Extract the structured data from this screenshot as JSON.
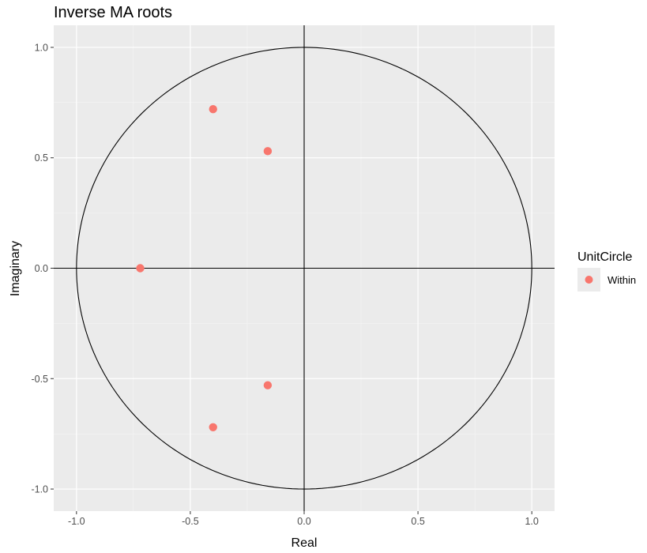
{
  "chart_data": {
    "type": "scatter",
    "title": "Inverse MA roots",
    "xlabel": "Real",
    "ylabel": "Imaginary",
    "xlim": [
      -1.1,
      1.1
    ],
    "ylim": [
      -1.1,
      1.1
    ],
    "x_ticks": [
      -1.0,
      -0.5,
      0.0,
      0.5,
      1.0
    ],
    "y_ticks": [
      -1.0,
      -0.5,
      0.0,
      0.5,
      1.0
    ],
    "x_tick_labels": [
      "-1.0",
      "-0.5",
      "0.0",
      "0.5",
      "1.0"
    ],
    "y_tick_labels": [
      "-1.0",
      "-0.5",
      "0.0",
      "0.5",
      "1.0"
    ],
    "grid": true,
    "unit_circle": true,
    "reference_lines": {
      "x": 0,
      "y": 0
    },
    "legend": {
      "title": "UnitCircle",
      "position": "right",
      "entries": [
        {
          "label": "Within",
          "color": "#f8766d"
        }
      ]
    },
    "series": [
      {
        "name": "Within",
        "color": "#f8766d",
        "points": [
          {
            "x": -0.4,
            "y": 0.72
          },
          {
            "x": -0.16,
            "y": 0.53
          },
          {
            "x": -0.72,
            "y": 0.0
          },
          {
            "x": -0.16,
            "y": -0.53
          },
          {
            "x": -0.4,
            "y": -0.72
          }
        ]
      }
    ]
  },
  "colors": {
    "panel_background": "#ebebeb",
    "grid_major": "#ffffff",
    "grid_minor": "#f5f5f5",
    "point": "#f8766d",
    "circle": "#000000",
    "tick_text": "#4d4d4d"
  }
}
